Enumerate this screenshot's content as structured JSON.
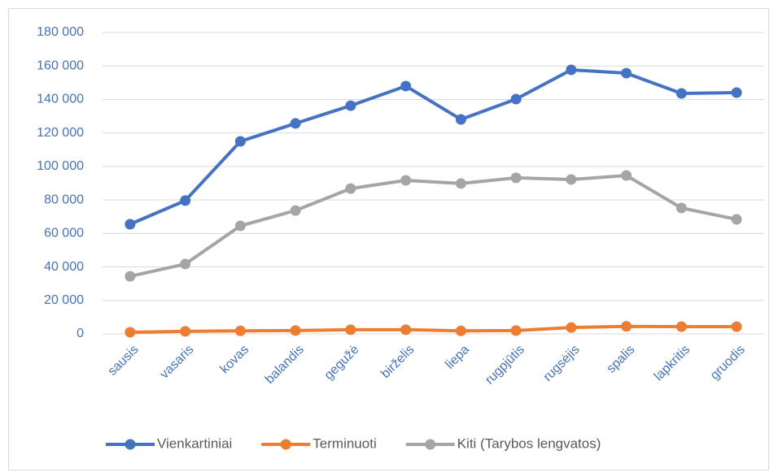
{
  "chart_data": {
    "type": "line",
    "categories": [
      "sausis",
      "vasaris",
      "kovas",
      "balandis",
      "gegužė",
      "birželis",
      "liepa",
      "rugpjūtis",
      "rugsėjis",
      "spalis",
      "lapkritis",
      "gruodis"
    ],
    "series": [
      {
        "name": "Vienkartiniai",
        "color": "#4472c4",
        "values": [
          65500,
          79600,
          115000,
          125700,
          136300,
          148000,
          128100,
          140200,
          157700,
          155700,
          143600,
          144100
        ]
      },
      {
        "name": "Terminuoti",
        "color": "#ed7d31",
        "values": [
          1000,
          1500,
          1800,
          2000,
          2500,
          2500,
          1800,
          2000,
          3800,
          4500,
          4300,
          4300
        ]
      },
      {
        "name": "Kiti (Tarybos lengvatos)",
        "color": "#a5a5a5",
        "values": [
          34400,
          41700,
          64500,
          73700,
          86800,
          91700,
          89800,
          93200,
          92200,
          94600,
          75200,
          68400
        ]
      }
    ],
    "ylim": [
      0,
      180000
    ],
    "yticks": [
      0,
      {
        "value": 20000,
        "label": "20 000"
      },
      {
        "value": 40000,
        "label": "40 000"
      },
      {
        "value": 60000,
        "label": "60 000"
      },
      {
        "value": 80000,
        "label": "80 000"
      },
      {
        "value": 100000,
        "label": "100 000"
      },
      {
        "value": 120000,
        "label": "120 000"
      },
      {
        "value": 140000,
        "label": "140 000"
      },
      {
        "value": 160000,
        "label": "160 000"
      },
      {
        "value": 180000,
        "label": "180 000"
      }
    ],
    "grid": true,
    "legend": "bottom"
  }
}
